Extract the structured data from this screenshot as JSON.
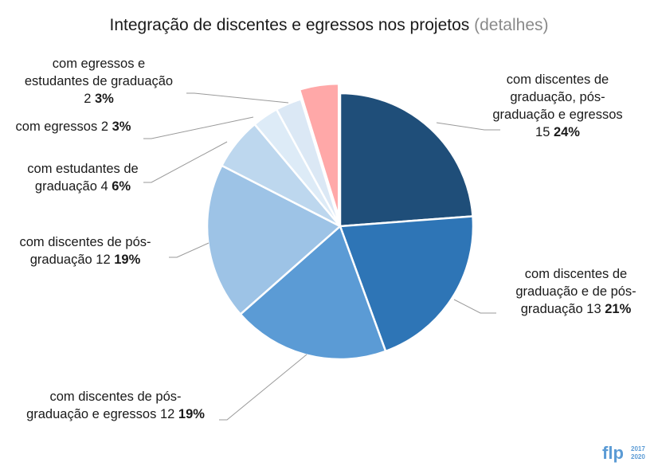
{
  "chart_data": {
    "type": "pie",
    "title": "Integração de discentes e egressos nos projetos",
    "title_link": "(detalhes)",
    "slices": [
      {
        "lines": [
          "com discentes de",
          "graduação, pós-",
          "graduação e egressos"
        ],
        "count": "15",
        "percent": "24%",
        "value": 15,
        "color": "#1f4e79"
      },
      {
        "lines": [
          "com discentes de",
          "graduação e de pós-"
        ],
        "last": "graduação",
        "count": "13",
        "percent": "21%",
        "value": 13,
        "color": "#2e75b6"
      },
      {
        "lines": [
          "com discentes de pós-"
        ],
        "last": "graduação e egressos",
        "count": "12",
        "percent": "19%",
        "value": 12,
        "color": "#5b9bd5"
      },
      {
        "lines": [
          "com discentes de pós-"
        ],
        "last": "graduação",
        "count": "12",
        "percent": "19%",
        "value": 12,
        "color": "#9dc3e6"
      },
      {
        "lines": [
          "com estudantes de"
        ],
        "last": "graduação",
        "count": "4",
        "percent": "6%",
        "value": 4,
        "color": "#bdd7ee"
      },
      {
        "lines": [],
        "last": "com egressos",
        "count": "2",
        "percent": "3%",
        "value": 2,
        "color": "#ddebf7"
      },
      {
        "lines": [
          "com egressos e",
          "estudantes de graduação"
        ],
        "last": "",
        "count": "2",
        "percent": "3%",
        "value": 2,
        "color": "#dbe8f5"
      },
      {
        "lines": [],
        "last": "",
        "count": "",
        "percent": "",
        "value": 3,
        "color": "#ffa8a8",
        "exploded": true
      }
    ]
  },
  "logo": {
    "text": "flp",
    "years": [
      "2017",
      "2020"
    ],
    "color": "#5b9bd5"
  }
}
